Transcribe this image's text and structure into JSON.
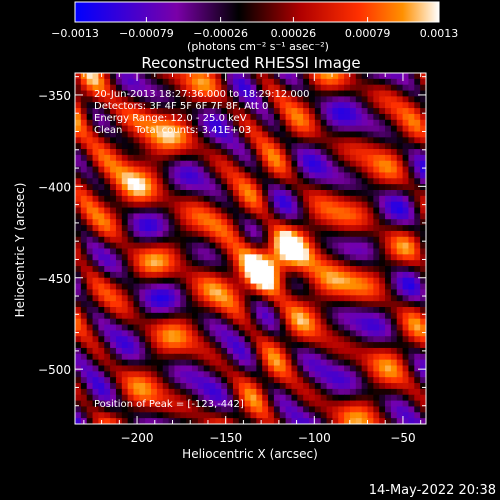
{
  "chart_data": {
    "type": "heatmap",
    "title": "Reconstructed RHESSI Image",
    "xlabel": "Heliocentric X (arcsec)",
    "ylabel": "Heliocentric Y (arcsec)",
    "xlim": [
      -235,
      -37
    ],
    "ylim": [
      -530,
      -338
    ],
    "x_ticks": [
      -200,
      -150,
      -100,
      -50
    ],
    "y_ticks": [
      -350,
      -400,
      -450,
      -500
    ],
    "colorbar": {
      "ticks": [
        -0.0013,
        -0.00079,
        -0.00026,
        0.00026,
        0.00079,
        0.0013
      ],
      "tick_labels": [
        "-0.0013",
        "-0.00079",
        "-0.00026",
        "0.00026",
        "0.00079",
        "0.0013"
      ],
      "range": [
        -0.0013,
        0.0013
      ],
      "units_label": "(photons cm⁻² s⁻¹ asec⁻²)"
    },
    "annotations": [
      "20-Jun-2013 18:27:36.000 to 18:29:12.000",
      "Detectors: 3F 4F 5F 6F 7F 8F, Att 0",
      "Energy Range: 12.0 - 25.0 keV",
      "Clean    Total counts: 3.41E+03"
    ],
    "peak_label": "Position of Peak = [-123,-442]",
    "peak_position": [
      -123,
      -442
    ],
    "colormap": [
      "#0000ff",
      "#7a00a8",
      "#000000",
      "#b00000",
      "#ff3000",
      "#ff9000",
      "#ffffff"
    ]
  },
  "footer": {
    "timestamp": "14-May-2022 20:38"
  }
}
